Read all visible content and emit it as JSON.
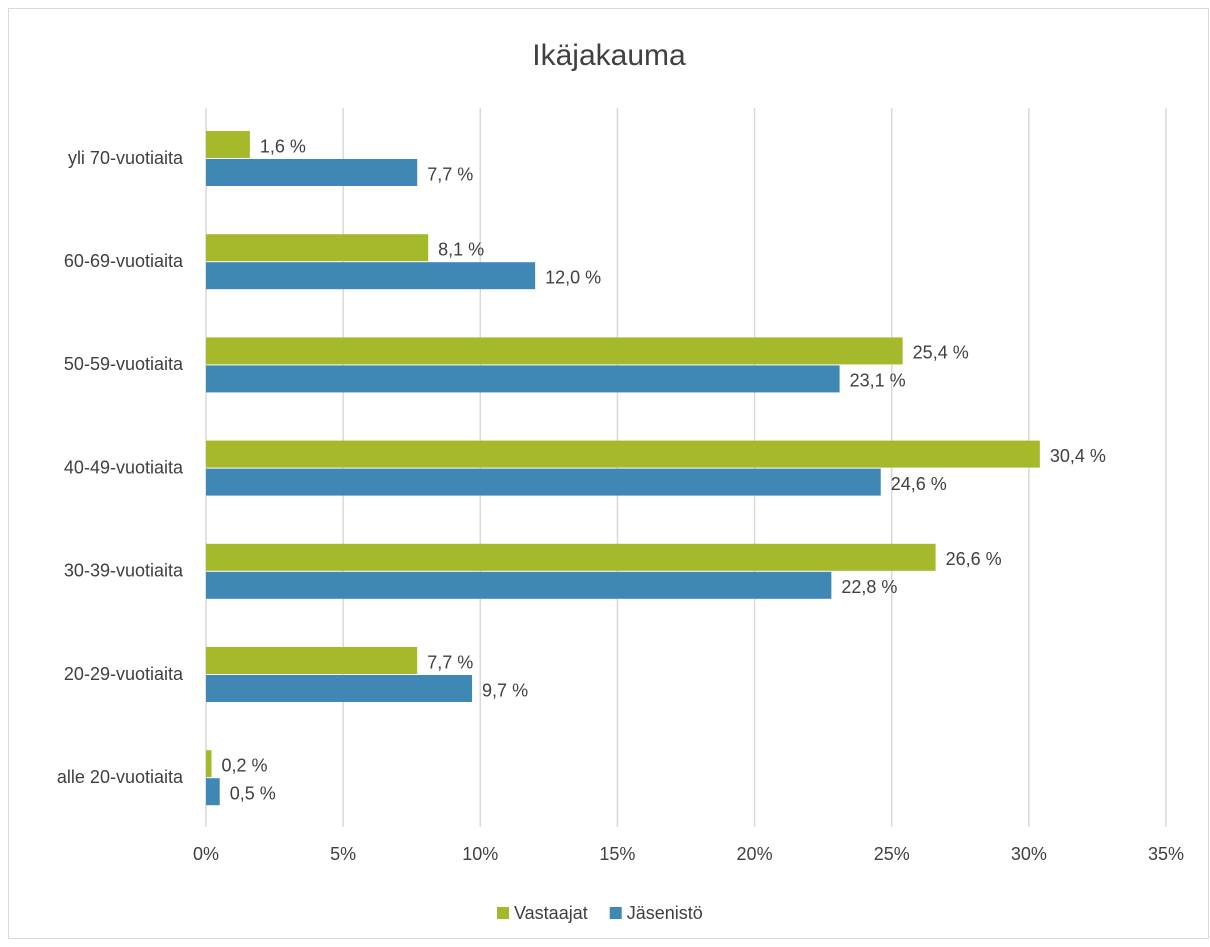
{
  "chart_data": {
    "type": "hbar",
    "title": "Ikäjakauma",
    "categories": [
      "yli 70-vuotiaita",
      "60-69-vuotiaita",
      "50-59-vuotiaita",
      "40-49-vuotiaita",
      "30-39-vuotiaita",
      "20-29-vuotiaita",
      "alle 20-vuotiaita"
    ],
    "series": [
      {
        "name": "Vastaajat",
        "color": "#a5b92a",
        "values": [
          1.6,
          8.1,
          25.4,
          30.4,
          26.6,
          7.7,
          0.2
        ],
        "value_labels": [
          "1,6 %",
          "8,1 %",
          "25,4 %",
          "30,4 %",
          "26,6 %",
          "7,7 %",
          "0,2 %"
        ]
      },
      {
        "name": "Jäsenistö",
        "color": "#3f88b5",
        "values": [
          7.7,
          12.0,
          23.1,
          24.6,
          22.8,
          9.7,
          0.5
        ],
        "value_labels": [
          "7,7 %",
          "12,0 %",
          "23,1 %",
          "24,6 %",
          "22,8 %",
          "9,7 %",
          "0,5 %"
        ]
      }
    ],
    "xlim": [
      0,
      35
    ],
    "xticks": [
      {
        "value": 0,
        "label": "0%"
      },
      {
        "value": 5,
        "label": "5%"
      },
      {
        "value": 10,
        "label": "10%"
      },
      {
        "value": 15,
        "label": "15%"
      },
      {
        "value": 20,
        "label": "20%"
      },
      {
        "value": 25,
        "label": "25%"
      },
      {
        "value": 30,
        "label": "30%"
      },
      {
        "value": 35,
        "label": "35%"
      }
    ],
    "grid": true,
    "legend": "bottom"
  }
}
